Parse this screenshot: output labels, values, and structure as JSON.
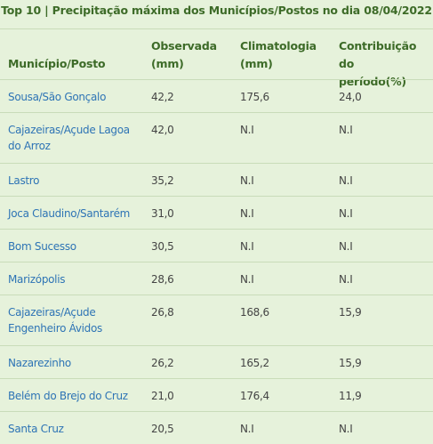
{
  "title": "Top 10 | Precipitação máxima dos Municípios/Postos no dia 08/04/2022",
  "headers": {
    "municipio": "Município/Posto",
    "observada_1": "Observada",
    "observada_2": "(mm)",
    "climatologia_1": "Climatologia",
    "climatologia_2": "(mm)",
    "contribuicao_1": "Contribuição do",
    "contribuicao_2": "período(%)"
  },
  "rows": [
    {
      "municipio": "Sousa/São Gonçalo",
      "observada": "42,2",
      "climatologia": "175,6",
      "contribuicao": "24,0"
    },
    {
      "municipio": "Cajazeiras/Açude Lagoa do Arroz",
      "observada": "42,0",
      "climatologia": "N.I",
      "contribuicao": "N.I"
    },
    {
      "municipio": "Lastro",
      "observada": "35,2",
      "climatologia": "N.I",
      "contribuicao": "N.I"
    },
    {
      "municipio": "Joca Claudino/Santarém",
      "observada": "31,0",
      "climatologia": "N.I",
      "contribuicao": "N.I"
    },
    {
      "municipio": "Bom Sucesso",
      "observada": "30,5",
      "climatologia": "N.I",
      "contribuicao": "N.I"
    },
    {
      "municipio": "Marizópolis",
      "observada": "28,6",
      "climatologia": "N.I",
      "contribuicao": "N.I"
    },
    {
      "municipio": "Cajazeiras/Açude Engenheiro Ávidos",
      "observada": "26,8",
      "climatologia": "168,6",
      "contribuicao": "15,9"
    },
    {
      "municipio": "Nazarezinho",
      "observada": "26,2",
      "climatologia": "165,2",
      "contribuicao": "15,9"
    },
    {
      "municipio": "Belém do Brejo do Cruz",
      "observada": "21,0",
      "climatologia": "176,4",
      "contribuicao": "11,9"
    },
    {
      "municipio": "Santa Cruz",
      "observada": "20,5",
      "climatologia": "N.I",
      "contribuicao": "N.I"
    }
  ]
}
